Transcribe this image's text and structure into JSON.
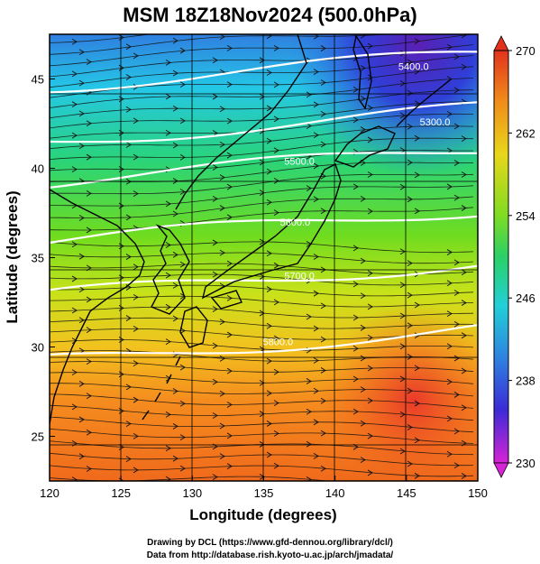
{
  "title": "MSM 18Z18Nov2024 (500.0hPa)",
  "xlabel": "Longitude (degrees)",
  "ylabel": "Latitude  (degrees)",
  "x_ticks": [
    "120",
    "125",
    "130",
    "135",
    "140",
    "145",
    "150"
  ],
  "y_ticks": [
    "25",
    "30",
    "35",
    "40",
    "45"
  ],
  "colorbar": {
    "labels": [
      "270",
      "262",
      "254",
      "246",
      "238",
      "230"
    ],
    "min": 230,
    "max": 270
  },
  "contour_labels": [
    "5300.0",
    "5400.0",
    "5500.0",
    "5600.0",
    "5700.0",
    "5800.0"
  ],
  "credits": {
    "line1": "Drawing by DCL (https://www.gfd-dennou.org/library/dcl/)",
    "line2": "Data from http://database.rish.kyoto-u.ac.jp/arch/jmadata/"
  },
  "chart_data": {
    "type": "heatmap",
    "title": "MSM 18Z18Nov2024 (500.0hPa)",
    "xlabel": "Longitude (degrees)",
    "ylabel": "Latitude  (degrees)",
    "xlim": [
      120,
      150
    ],
    "ylim": [
      22.5,
      47.5
    ],
    "color_scale": [
      230,
      270
    ],
    "contour_levels": [
      {
        "label": "5300.0",
        "lon": 147,
        "lat": 42.4
      },
      {
        "label": "5400.0",
        "lon": 145.5,
        "lat": 45.5
      },
      {
        "label": "5500.0",
        "lon": 137.5,
        "lat": 40.2
      },
      {
        "label": "5600.0",
        "lon": 137.2,
        "lat": 36.8
      },
      {
        "label": "5700.0",
        "lon": 137.5,
        "lat": 33.8
      },
      {
        "label": "5800.0",
        "lon": 136,
        "lat": 30.1
      }
    ],
    "grid": true
  }
}
